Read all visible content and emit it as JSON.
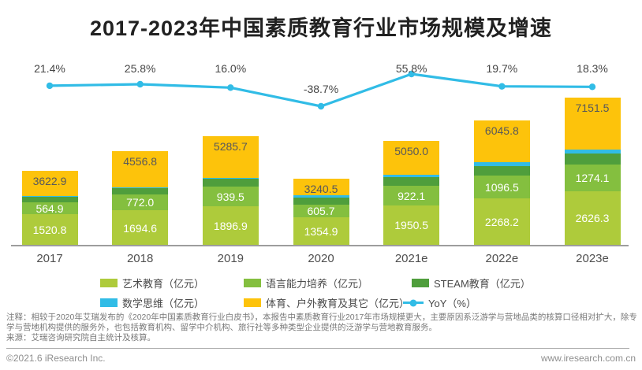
{
  "title": "2017-2023年中国素质教育行业市场规模及增速",
  "chart_data": {
    "type": "bar",
    "subtype": "stacked-bar-with-yoy-line",
    "categories": [
      "2017",
      "2018",
      "2019",
      "2020",
      "2021e",
      "2022e",
      "2023e"
    ],
    "unit": "亿元",
    "series": [
      {
        "key": "art",
        "name": "艺术教育",
        "color": "#aecb3b",
        "label_visible": true,
        "values": [
          1520.8,
          1694.6,
          1896.9,
          1354.9,
          1950.5,
          2268.2,
          2626.3
        ]
      },
      {
        "key": "language",
        "name": "语言能力培养",
        "color": "#84bf3f",
        "label_visible": true,
        "values": [
          564.9,
          772.0,
          939.5,
          605.7,
          922.1,
          1096.5,
          1274.1
        ]
      },
      {
        "key": "steam",
        "name": "STEAM教育",
        "color": "#4f9e3c",
        "label_visible": false,
        "estimated_from_pixels": true,
        "values": [
          300,
          330,
          380,
          360,
          420,
          490,
          560
        ]
      },
      {
        "key": "math",
        "name": "数学思维",
        "color": "#31bce6",
        "label_visible": false,
        "estimated_from_pixels": true,
        "values": [
          12,
          30,
          60,
          110,
          140,
          160,
          190
        ]
      },
      {
        "key": "sports",
        "name": "体育、户外教育及其它",
        "color": "#fdc30b",
        "label_visible": false,
        "estimated_from_pixels": true,
        "values": [
          1225.2,
          1730.2,
          2009.3,
          809.9,
          1617.4,
          2031.1,
          2501.1
        ]
      }
    ],
    "totals": [
      3622.9,
      4556.8,
      5285.7,
      3240.5,
      5050.0,
      6045.8,
      7151.5
    ],
    "totals_label_visible": true,
    "yoy": {
      "name": "YoY",
      "unit": "%",
      "color": "#31bce6",
      "values": [
        21.4,
        25.8,
        16.0,
        -38.7,
        55.8,
        19.7,
        18.3
      ],
      "labels": [
        "21.4%",
        "25.8%",
        "16.0%",
        "-38.7%",
        "55.8%",
        "19.7%",
        "18.3%"
      ]
    },
    "axis": {
      "x_visible": true,
      "y_visible": false,
      "gridlines": false
    },
    "legend_position": "bottom"
  },
  "legend": [
    {
      "label": "艺术教育（亿元）",
      "color": "#aecb3b",
      "type": "swatch"
    },
    {
      "label": "语言能力培养（亿元）",
      "color": "#84bf3f",
      "type": "swatch"
    },
    {
      "label": "STEAM教育（亿元）",
      "color": "#4f9e3c",
      "type": "swatch"
    },
    {
      "label": "数学思维（亿元）",
      "color": "#31bce6",
      "type": "swatch"
    },
    {
      "label": "体育、户外教育及其它（亿元）",
      "color": "#fdc30b",
      "type": "swatch"
    },
    {
      "label": "YoY（%）",
      "color": "#31bce6",
      "type": "line"
    }
  ],
  "note_lines": [
    "注释：相较于2020年艾瑞发布的《2020年中国素质教育行业白皮书》，本报告中素质教育行业2017年市场规模更大，主要原因系泛游学与营地品类的核算口径相对扩大，除专业游",
    "学与营地机构提供的服务外，也包括教育机构、留学中介机构、旅行社等多种类型企业提供的泛游学与营地教育服务。",
    "来源：艾瑞咨询研究院自主统计及核算。"
  ],
  "footer": {
    "left": "©2021.6 iResearch Inc.",
    "right": "www.iresearch.com.cn"
  }
}
